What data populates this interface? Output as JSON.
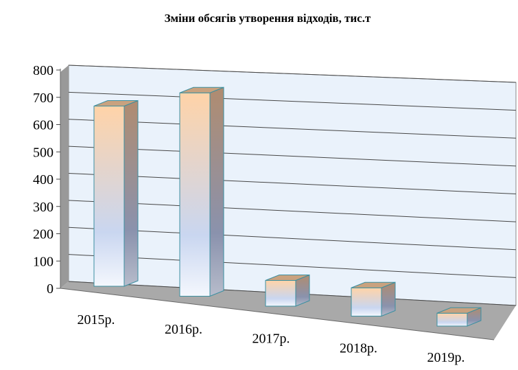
{
  "chart_data": {
    "type": "bar3d",
    "title": "Зміни обсягів утворення відходів, тис.т",
    "categories": [
      "2015р.",
      "2016р.",
      "2017р.",
      "2018р.",
      "2019р."
    ],
    "values": [
      700,
      790,
      100,
      110,
      50
    ],
    "ylim": [
      0,
      800
    ],
    "yticks": [
      0,
      100,
      200,
      300,
      400,
      500,
      600,
      700,
      800
    ],
    "grid": true
  }
}
